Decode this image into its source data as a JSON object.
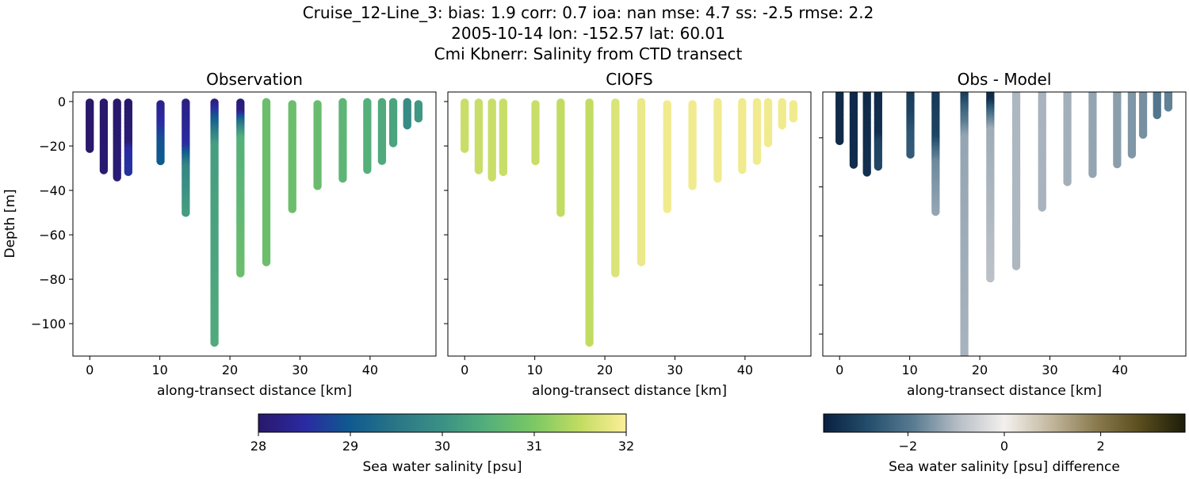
{
  "figure": {
    "title_lines": [
      "Cruise_12-Line_3: bias: 1.9  corr: 0.7  ioa: nan  mse: 4.7  ss: -2.5  rmse: 2.2",
      "2005-10-14 lon: -152.57 lat: 60.01",
      "Cmi Kbnerr: Salinity from CTD transect"
    ]
  },
  "chart_data": [
    {
      "type": "scatter",
      "title": "Observation",
      "xlabel": "along-transect distance [km]",
      "ylabel": "Depth [m]",
      "xlim": [
        -2.4,
        49.4
      ],
      "ylim": [
        -114.6,
        4.3
      ],
      "xticks": [
        0,
        10,
        20,
        30,
        40
      ],
      "yticks": [
        0,
        -20,
        -40,
        -60,
        -80,
        -100
      ],
      "ytick_labels": [
        "0",
        "−20",
        "−40",
        "−60",
        "−80",
        "−100"
      ],
      "xtick_labels": [
        "0",
        "10",
        "20",
        "30",
        "40"
      ],
      "color_variable": "observed salinity",
      "colormap": "haline",
      "clim": [
        28,
        32
      ]
    },
    {
      "type": "scatter",
      "title": "CIOFS",
      "xlabel": "along-transect distance [km]",
      "xlim": [
        -2.4,
        49.4
      ],
      "ylim": [
        -114.6,
        4.3
      ],
      "xticks": [
        0,
        10,
        20,
        30,
        40
      ],
      "xtick_labels": [
        "0",
        "10",
        "20",
        "30",
        "40"
      ],
      "yticks": [
        0,
        -20,
        -40,
        -60,
        -80,
        -100
      ],
      "color_variable": "model salinity",
      "colormap": "haline",
      "clim": [
        28,
        32
      ]
    },
    {
      "type": "scatter",
      "title": "Obs - Model",
      "xlabel": "along-transect distance [km]",
      "xlim": [
        -2.4,
        49.4
      ],
      "ylim": [
        -109,
        -1.3
      ],
      "xticks": [
        0,
        10,
        20,
        30,
        40
      ],
      "xtick_labels": [
        "0",
        "10",
        "20",
        "30",
        "40"
      ],
      "yticks": [
        -20,
        -40,
        -60,
        -80,
        -100
      ],
      "color_variable": "obs - model salinity",
      "colormap": "diff",
      "clim": [
        -3.75,
        3.75
      ]
    }
  ],
  "stations": [
    {
      "x": 0.0,
      "top": -0.5,
      "bottom": -21.8,
      "obs": [
        [
          0,
          28.0
        ],
        [
          -22,
          28.0
        ]
      ],
      "model": 31.55
    },
    {
      "x": 2.0,
      "top": -0.5,
      "bottom": -31.0,
      "obs": [
        [
          0,
          28.0
        ],
        [
          -31,
          28.05
        ]
      ],
      "model": 31.55
    },
    {
      "x": 3.9,
      "top": -0.5,
      "bottom": -34.8,
      "obs": [
        [
          0,
          28.0
        ],
        [
          -35,
          28.1
        ]
      ],
      "model": 31.55
    },
    {
      "x": 5.5,
      "top": -0.5,
      "bottom": -31.8,
      "obs": [
        [
          0,
          28.0
        ],
        [
          -19,
          28.1
        ],
        [
          -22,
          28.5
        ],
        [
          -32,
          28.6
        ]
      ],
      "model": 31.55
    },
    {
      "x": 10.1,
      "top": -1.2,
      "bottom": -26.9,
      "obs": [
        [
          -1,
          28.3
        ],
        [
          -10,
          28.5
        ],
        [
          -18,
          28.9
        ],
        [
          -27,
          29.0
        ]
      ],
      "model": 31.55
    },
    {
      "x": 13.7,
      "top": -0.5,
      "bottom": -50.8,
      "obs": [
        [
          0,
          28.2
        ],
        [
          -20,
          28.5
        ],
        [
          -25,
          29.2
        ],
        [
          -30,
          29.8
        ],
        [
          -51,
          30.2
        ]
      ],
      "model": 31.5
    },
    {
      "x": 17.8,
      "top": -0.5,
      "bottom": -109.2,
      "obs": [
        [
          0,
          28.1
        ],
        [
          -3,
          28.4
        ],
        [
          -8,
          29.0
        ],
        [
          -15,
          29.7
        ],
        [
          -20,
          30.2
        ],
        [
          -109,
          30.4
        ]
      ],
      "model": 31.5
    },
    {
      "x": 21.5,
      "top": -0.5,
      "bottom": -77.6,
      "obs": [
        [
          0,
          28.1
        ],
        [
          -5,
          28.2
        ],
        [
          -8,
          29.0
        ],
        [
          -12,
          29.8
        ],
        [
          -17,
          30.5
        ],
        [
          -78,
          30.8
        ]
      ],
      "model": 31.7
    },
    {
      "x": 25.2,
      "top": -0.3,
      "bottom": -72.6,
      "obs": [
        [
          0,
          30.8
        ],
        [
          -73,
          30.8
        ]
      ],
      "model": 31.85
    },
    {
      "x": 28.9,
      "top": -1.2,
      "bottom": -48.8,
      "obs": [
        [
          0,
          30.8
        ],
        [
          -49,
          30.8
        ]
      ],
      "model": 31.9
    },
    {
      "x": 32.5,
      "top": -1.2,
      "bottom": -38.0,
      "obs": [
        [
          0,
          30.75
        ],
        [
          -38,
          30.75
        ]
      ],
      "model": 31.9
    },
    {
      "x": 36.1,
      "top": -0.3,
      "bottom": -34.9,
      "obs": [
        [
          0,
          30.6
        ],
        [
          -35,
          30.6
        ]
      ],
      "model": 31.9
    },
    {
      "x": 39.6,
      "top": -0.3,
      "bottom": -31.0,
      "obs": [
        [
          0,
          30.5
        ],
        [
          -31,
          30.5
        ]
      ],
      "model": 31.9
    },
    {
      "x": 41.7,
      "top": -0.3,
      "bottom": -27.0,
      "obs": [
        [
          0,
          30.4
        ],
        [
          -27,
          30.4
        ]
      ],
      "model": 31.9
    },
    {
      "x": 43.3,
      "top": -0.3,
      "bottom": -18.9,
      "obs": [
        [
          0,
          30.3
        ],
        [
          -19,
          30.3
        ]
      ],
      "model": 31.9
    },
    {
      "x": 45.3,
      "top": -0.3,
      "bottom": -11.2,
      "obs": [
        [
          0,
          29.9
        ],
        [
          -11,
          29.9
        ]
      ],
      "model": 31.9
    },
    {
      "x": 46.9,
      "top": -1.2,
      "bottom": -8.1,
      "obs": [
        [
          0,
          30.1
        ],
        [
          -8,
          30.1
        ]
      ],
      "model": 31.9
    }
  ],
  "colorbars": [
    {
      "label": "Sea water salinity [psu]",
      "range": [
        28,
        32
      ],
      "ticks": [
        28,
        29,
        30,
        31,
        32
      ],
      "tick_labels": [
        "28",
        "29",
        "30",
        "31",
        "32"
      ],
      "colormap": "haline",
      "stops": [
        "#29186b",
        "#2b2aa2",
        "#0f5a8f",
        "#2a7686",
        "#3b9185",
        "#55b07a",
        "#7cc864",
        "#c2dc62",
        "#fdef9a"
      ]
    },
    {
      "label": "Sea water salinity [psu] difference",
      "range": [
        -3.75,
        3.75
      ],
      "ticks": [
        -2,
        0,
        2
      ],
      "tick_labels": [
        "−2",
        "0",
        "2"
      ],
      "colormap": "diff",
      "stops": [
        "#0a2040",
        "#244e6c",
        "#5a7c92",
        "#b8bfc6",
        "#f3f0ee",
        "#c4b9a0",
        "#8c7c50",
        "#5a4d1e",
        "#1c1d0a"
      ]
    }
  ]
}
